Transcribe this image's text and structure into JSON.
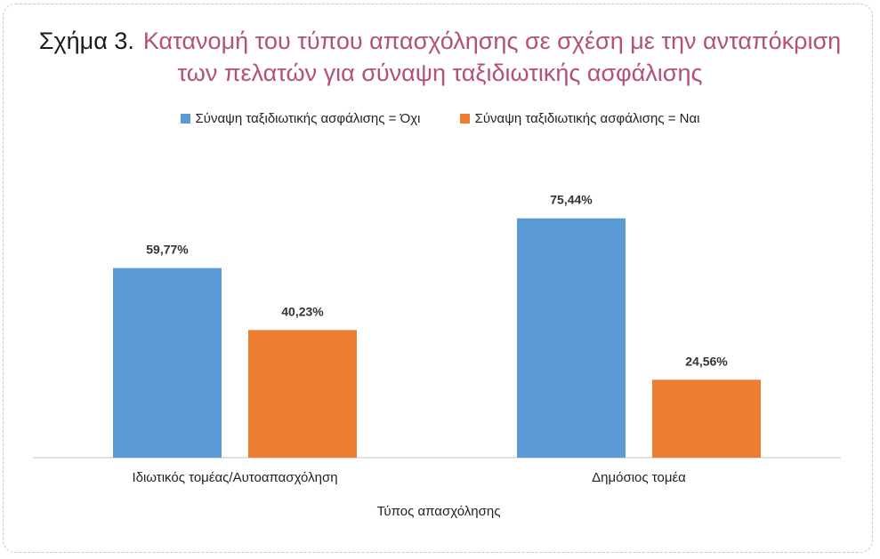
{
  "figure": {
    "prefix": "Σχήμα 3.",
    "title_line1": "Κατανομή του τύπου απασχόλησης σε σχέση με την ανταπόκριση",
    "title_line2": "των πελατών για σύναψη ταξιδιωτικής ασφάλισης"
  },
  "colors": {
    "series_no": "#5b9bd5",
    "series_yes": "#ed7d31",
    "title": "#b5507a",
    "frame": "#c9c9c9"
  },
  "chart_data": {
    "type": "bar",
    "title": "Κατανομή του τύπου απασχόλησης σε σχέση με την ανταπόκριση των πελατών για σύναψη ταξιδιωτικής ασφάλισης",
    "xlabel": "Τύπος απασχόλησης",
    "ylabel": "",
    "categories": [
      "Ιδιωτικός τομέας/Αυτοαπασχόληση",
      "Δημόσιος τομέα"
    ],
    "series": [
      {
        "name": "Σύναψη ταξιδιωτικής ασφάλισης = Όχι",
        "values": [
          59.77,
          75.44
        ],
        "labels": [
          "59,77%",
          "75,44%"
        ],
        "color": "#5b9bd5"
      },
      {
        "name": "Σύναψη ταξιδιωτικής ασφάλισης = Ναι",
        "values": [
          40.23,
          24.56
        ],
        "labels": [
          "40,23%",
          "24,56%"
        ],
        "color": "#ed7d31"
      }
    ],
    "ylim": [
      0,
      100
    ],
    "grid": false,
    "y_axis_visible": false,
    "legend": "top"
  }
}
